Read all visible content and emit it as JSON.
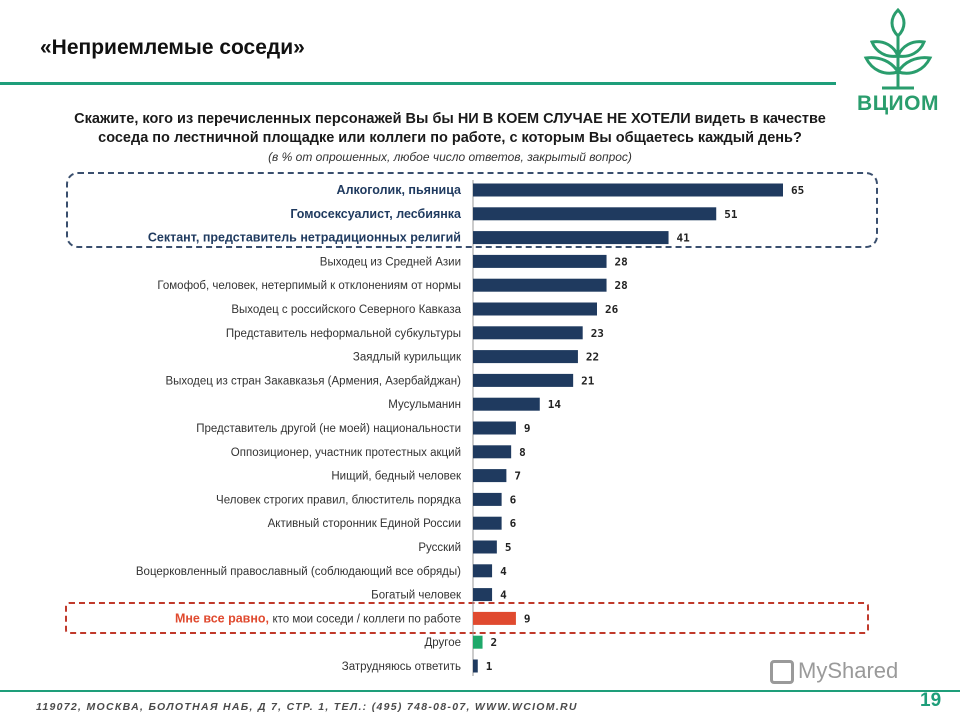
{
  "slide": {
    "title": "«Неприемлемые соседи»",
    "question": "Скажите, кого из перечисленных персонажей Вы бы НИ В КОЕМ СЛУЧАЕ НЕ ХОТЕЛИ видеть в качестве соседа по лестничной площадке или коллеги по работе, с которым Вы общаетесь каждый день?",
    "note": "(в % от опрошенных, любое число ответов, закрытый вопрос)",
    "footer": "119072, МОСКВА, БОЛОТНАЯ НАБ, Д 7, СТР. 1, ТЕЛ.: (495) 748-08-07, WWW.WCIOM.RU",
    "page_number": "19",
    "logo_text": "ВЦИОМ",
    "watermark": "MyShared"
  },
  "colors": {
    "bar_default": "#1f3a5f",
    "bar_highlight": "#e04a2f",
    "bar_other": "#1ea86a",
    "accent": "#1e9e7a"
  },
  "chart_data": {
    "type": "bar",
    "orientation": "horizontal",
    "xlim": [
      0,
      70
    ],
    "categories": [
      "Алкоголик, пьяница",
      "Гомосексуалист, лесбиянка",
      "Сектант, представитель нетрадиционных религий",
      "Выходец из Средней Азии",
      "Гомофоб, человек, нетерпимый к  отклонениям от нормы",
      "Выходец с российского Северного Кавказа",
      "Представитель неформальной субкультуры",
      "Заядлый курильщик",
      "Выходец из стран Закавказья (Армения, Азербайджан)",
      "Мусульманин",
      "Представитель другой (не моей) национальности",
      "Оппозиционер, участник протестных акций",
      "Нищий, бедный человек",
      "Человек строгих правил, блюститель порядка",
      "Активный сторонник  Единой России",
      "Русский",
      "Воцерковленный православный (соблюдающий все обряды)",
      "Богатый человек",
      "кто мои соседи / коллеги по работе",
      "Другое",
      "Затрудняюсь ответить"
    ],
    "label_prefixes": [
      "",
      "",
      "",
      "",
      "",
      "",
      "",
      "",
      "",
      "",
      "",
      "",
      "",
      "",
      "",
      "",
      "",
      "",
      "Мне все равно,",
      "",
      ""
    ],
    "values": [
      65,
      51,
      41,
      28,
      28,
      26,
      23,
      22,
      21,
      14,
      9,
      8,
      7,
      6,
      6,
      5,
      4,
      4,
      9,
      2,
      1
    ],
    "emphasized": [
      true,
      true,
      true,
      false,
      false,
      false,
      false,
      false,
      false,
      false,
      false,
      false,
      false,
      false,
      false,
      false,
      false,
      false,
      false,
      false,
      false
    ],
    "bar_colors": [
      "default",
      "default",
      "default",
      "default",
      "default",
      "default",
      "default",
      "default",
      "default",
      "default",
      "default",
      "default",
      "default",
      "default",
      "default",
      "default",
      "default",
      "default",
      "highlight",
      "other",
      "default"
    ],
    "unit": "%"
  }
}
